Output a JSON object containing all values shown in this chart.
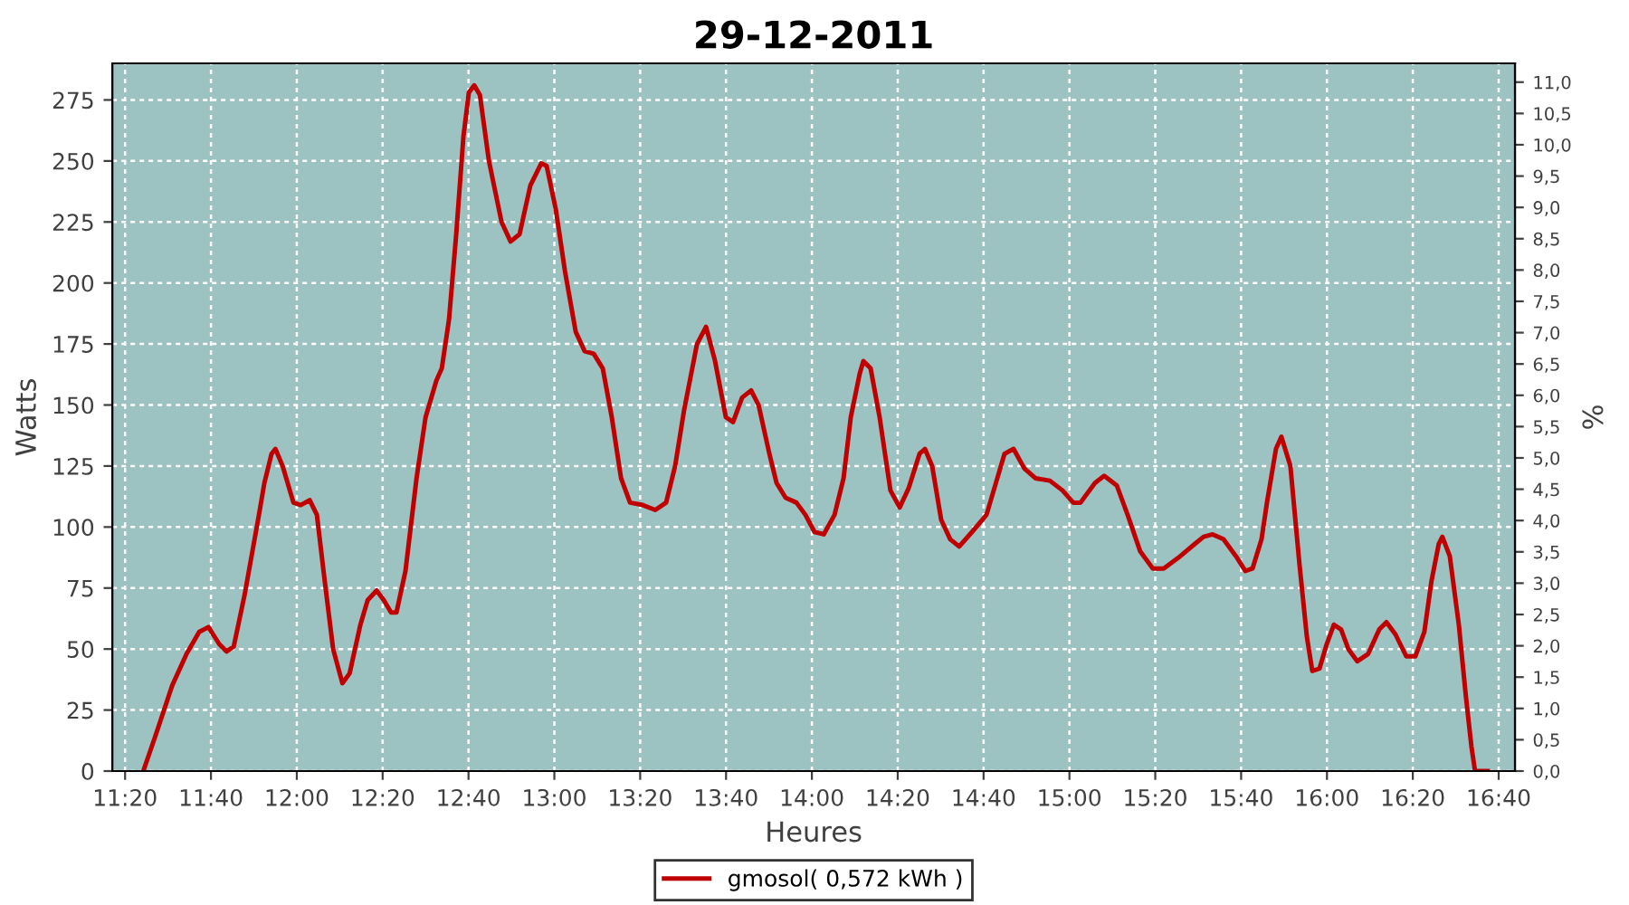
{
  "chart_data": {
    "type": "line",
    "title": "29-12-2011",
    "xlabel": "Heures",
    "ylabel": "Watts",
    "y2label": "%",
    "xlim": [
      11.284,
      16.73
    ],
    "ylim": [
      0,
      290
    ],
    "y2lim": [
      0,
      11.3
    ],
    "xticks": [
      {
        "value": 11.3333,
        "label": "11:20"
      },
      {
        "value": 11.6667,
        "label": "11:40"
      },
      {
        "value": 12,
        "label": "12:00"
      },
      {
        "value": 12.3333,
        "label": "12:20"
      },
      {
        "value": 12.6667,
        "label": "12:40"
      },
      {
        "value": 13,
        "label": "13:00"
      },
      {
        "value": 13.3333,
        "label": "13:20"
      },
      {
        "value": 13.6667,
        "label": "13:40"
      },
      {
        "value": 14,
        "label": "14:00"
      },
      {
        "value": 14.3333,
        "label": "14:20"
      },
      {
        "value": 14.6667,
        "label": "14:40"
      },
      {
        "value": 15,
        "label": "15:00"
      },
      {
        "value": 15.3333,
        "label": "15:20"
      },
      {
        "value": 15.6667,
        "label": "15:40"
      },
      {
        "value": 16,
        "label": "16:00"
      },
      {
        "value": 16.3333,
        "label": "16:20"
      },
      {
        "value": 16.6667,
        "label": "16:40"
      }
    ],
    "yticks": [
      0,
      25,
      50,
      75,
      100,
      125,
      150,
      175,
      200,
      225,
      250,
      275
    ],
    "y2ticks": [
      {
        "value": 0,
        "label": "0,0"
      },
      {
        "value": 0.5,
        "label": "0,5"
      },
      {
        "value": 1,
        "label": "1,0"
      },
      {
        "value": 1.5,
        "label": "1,5"
      },
      {
        "value": 2,
        "label": "2,0"
      },
      {
        "value": 2.5,
        "label": "2,5"
      },
      {
        "value": 3,
        "label": "3,0"
      },
      {
        "value": 3.5,
        "label": "3,5"
      },
      {
        "value": 4,
        "label": "4,0"
      },
      {
        "value": 4.5,
        "label": "4,5"
      },
      {
        "value": 5,
        "label": "5,0"
      },
      {
        "value": 5.5,
        "label": "5,5"
      },
      {
        "value": 6,
        "label": "6,0"
      },
      {
        "value": 6.5,
        "label": "6,5"
      },
      {
        "value": 7,
        "label": "7,0"
      },
      {
        "value": 7.5,
        "label": "7,5"
      },
      {
        "value": 8,
        "label": "8,0"
      },
      {
        "value": 8.5,
        "label": "8,5"
      },
      {
        "value": 9,
        "label": "9,0"
      },
      {
        "value": 9.5,
        "label": "9,5"
      },
      {
        "value": 10,
        "label": "10,0"
      },
      {
        "value": 10.5,
        "label": "10,5"
      },
      {
        "value": 11,
        "label": "11,0"
      }
    ],
    "grid": true,
    "legend": "bottom",
    "marker": "none",
    "line_style": "solid",
    "series": [
      {
        "name": "gmosol( 0,572 kWh )",
        "color": "#c00000",
        "x": [
          11.404,
          11.453,
          11.516,
          11.572,
          11.621,
          11.657,
          11.699,
          11.727,
          11.755,
          11.797,
          11.853,
          11.874,
          11.902,
          11.917,
          11.945,
          11.987,
          12.015,
          12.05,
          12.078,
          12.106,
          12.141,
          12.177,
          12.205,
          12.247,
          12.275,
          12.31,
          12.338,
          12.366,
          12.387,
          12.422,
          12.465,
          12.5,
          12.542,
          12.563,
          12.591,
          12.619,
          12.647,
          12.668,
          12.689,
          12.711,
          12.746,
          12.795,
          12.83,
          12.865,
          12.907,
          12.949,
          12.97,
          13.006,
          13.041,
          13.083,
          13.118,
          13.153,
          13.188,
          13.223,
          13.259,
          13.294,
          13.343,
          13.392,
          13.434,
          13.469,
          13.504,
          13.554,
          13.589,
          13.624,
          13.666,
          13.694,
          13.729,
          13.764,
          13.793,
          13.835,
          13.863,
          13.898,
          13.94,
          13.975,
          14.01,
          14.046,
          14.088,
          14.123,
          14.151,
          14.186,
          14.2,
          14.228,
          14.263,
          14.305,
          14.341,
          14.376,
          14.418,
          14.439,
          14.467,
          14.502,
          14.537,
          14.572,
          14.622,
          14.678,
          14.72,
          14.748,
          14.783,
          14.825,
          14.868,
          14.924,
          14.973,
          15.015,
          15.043,
          15.099,
          15.135,
          15.184,
          15.226,
          15.275,
          15.324,
          15.366,
          15.43,
          15.486,
          15.521,
          15.556,
          15.598,
          15.647,
          15.683,
          15.711,
          15.746,
          15.767,
          15.802,
          15.823,
          15.858,
          15.893,
          15.922,
          15.943,
          15.971,
          15.999,
          16.027,
          16.055,
          16.083,
          16.118,
          16.16,
          16.203,
          16.231,
          16.266,
          16.308,
          16.343,
          16.378,
          16.406,
          16.434,
          16.448,
          16.477,
          16.512,
          16.54,
          16.561,
          16.575,
          16.624
        ],
        "values": [
          0,
          15,
          35,
          48,
          57,
          59,
          52,
          49,
          51,
          72,
          105,
          118,
          130,
          132,
          125,
          110,
          109,
          111,
          105,
          80,
          50,
          36,
          40,
          60,
          70,
          74,
          70,
          65,
          65,
          82,
          120,
          145,
          160,
          165,
          185,
          220,
          260,
          278,
          281,
          277,
          250,
          225,
          217,
          220,
          240,
          249,
          248,
          230,
          205,
          180,
          172,
          171,
          165,
          145,
          120,
          110,
          109,
          107,
          110,
          125,
          148,
          175,
          182,
          168,
          145,
          143,
          153,
          156,
          150,
          130,
          118,
          112,
          110,
          105,
          98,
          97,
          105,
          120,
          145,
          163,
          168,
          165,
          145,
          115,
          108,
          116,
          130,
          132,
          125,
          103,
          95,
          92,
          98,
          105,
          120,
          130,
          132,
          124,
          120,
          119,
          115,
          110,
          110,
          118,
          121,
          117,
          105,
          90,
          83,
          83,
          88,
          93,
          96,
          97,
          95,
          88,
          82,
          83,
          95,
          110,
          132,
          137,
          125,
          85,
          55,
          41,
          42,
          52,
          60,
          58,
          50,
          45,
          48,
          58,
          61,
          56,
          47,
          47,
          57,
          78,
          93,
          96,
          88,
          60,
          30,
          10,
          0,
          0
        ]
      }
    ]
  }
}
